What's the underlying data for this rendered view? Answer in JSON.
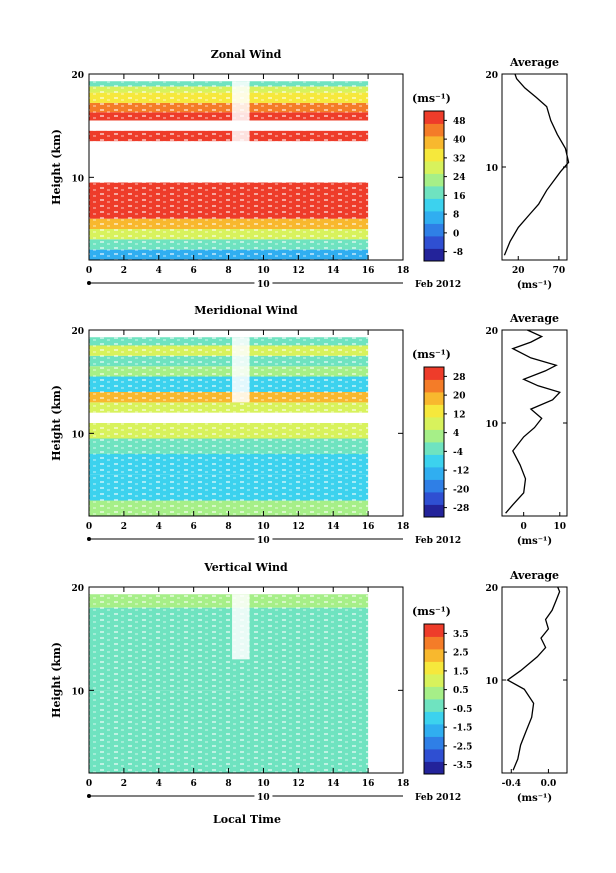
{
  "figure": {
    "x_ticks": [
      "0",
      "2",
      "4",
      "6",
      "8",
      "10",
      "12",
      "14",
      "16",
      "18"
    ],
    "y_ticks": [
      "20",
      "10"
    ],
    "ylabel": "Height (km)",
    "xlabel": "Local Time",
    "date_day": "10",
    "date_label": "Feb 2012",
    "avg_title": "Average",
    "unit_label": "(ms⁻¹)"
  },
  "chart_data": [
    {
      "type": "heatmap",
      "title": "Zonal Wind",
      "xlabel": "",
      "ylabel": "Height (km)",
      "xlim": [
        0,
        18
      ],
      "ylim": [
        2,
        20
      ],
      "colorbar_unit": "(ms⁻¹)",
      "colorbar_ticks": [
        "48",
        "40",
        "32",
        "24",
        "16",
        "8",
        "0",
        "-8"
      ],
      "colorbar_range": [
        -12,
        52
      ],
      "colors": [
        "#23239a",
        "#2f4fd2",
        "#2f7fe6",
        "#30aef0",
        "#3cd2ee",
        "#6fe3c0",
        "#a6ef88",
        "#d8f25c",
        "#f6e83c",
        "#f8b82e",
        "#f47c28",
        "#ee3c2a"
      ],
      "bands": [
        {
          "z0": 2,
          "z1": 3,
          "value": 8
        },
        {
          "z0": 3,
          "z1": 4,
          "value": 16
        },
        {
          "z0": 4,
          "z1": 5,
          "value": 28
        },
        {
          "z0": 5,
          "z1": 6,
          "value": 40
        },
        {
          "z0": 6,
          "z1": 9.5,
          "value": 55
        },
        {
          "z0": 9.5,
          "z1": 13.5,
          "value": null
        },
        {
          "z0": 13.5,
          "z1": 14.5,
          "value": 55
        },
        {
          "z0": 14.5,
          "z1": 15.5,
          "value": null
        },
        {
          "z0": 15.5,
          "z1": 16.3,
          "value": 55
        },
        {
          "z0": 16.3,
          "z1": 17.2,
          "value": 45
        },
        {
          "z0": 17.2,
          "z1": 18.2,
          "value": 34
        },
        {
          "z0": 18.2,
          "z1": 18.8,
          "value": 26
        },
        {
          "z0": 18.8,
          "z1": 19.3,
          "value": 18
        }
      ],
      "avg_profile": {
        "xlim": [
          0,
          80
        ],
        "x_ticks": [
          "20",
          "70"
        ],
        "xlabel": "(ms⁻¹)",
        "ylim": [
          0,
          20
        ],
        "points": [
          [
            3,
            0.5
          ],
          [
            10,
            2
          ],
          [
            20,
            3.5
          ],
          [
            35,
            5
          ],
          [
            45,
            6
          ],
          [
            55,
            7.5
          ],
          [
            72,
            9.5
          ],
          [
            82,
            10.5
          ],
          [
            78,
            12
          ],
          [
            68,
            13.5
          ],
          [
            60,
            15
          ],
          [
            55,
            16.5
          ],
          [
            42,
            17.5
          ],
          [
            28,
            18.5
          ],
          [
            18,
            19.5
          ],
          [
            16,
            20
          ]
        ]
      }
    },
    {
      "type": "heatmap",
      "title": "Meridional Wind",
      "xlabel": "",
      "ylabel": "Height (km)",
      "xlim": [
        0,
        18
      ],
      "ylim": [
        2,
        20
      ],
      "colorbar_unit": "(ms⁻¹)",
      "colorbar_ticks": [
        "28",
        "20",
        "12",
        "4",
        "-4",
        "-12",
        "-20",
        "-28"
      ],
      "colorbar_range": [
        -32,
        32
      ],
      "colors": [
        "#23239a",
        "#2f4fd2",
        "#2f7fe6",
        "#30aef0",
        "#3cd2ee",
        "#6fe3c0",
        "#a6ef88",
        "#d8f25c",
        "#f6e83c",
        "#f8b82e",
        "#f47c28",
        "#ee3c2a"
      ],
      "bands": [
        {
          "z0": 2,
          "z1": 3.5,
          "value": 2
        },
        {
          "z0": 3.5,
          "z1": 6,
          "value": -6
        },
        {
          "z0": 6,
          "z1": 8,
          "value": -10
        },
        {
          "z0": 8,
          "z1": 9.5,
          "value": -4
        },
        {
          "z0": 9.5,
          "z1": 11,
          "value": 8
        },
        {
          "z0": 11,
          "z1": 12,
          "value": null
        },
        {
          "z0": 12,
          "z1": 13,
          "value": 10
        },
        {
          "z0": 13,
          "z1": 14,
          "value": 16
        },
        {
          "z0": 14,
          "z1": 15.5,
          "value": -6
        },
        {
          "z0": 15.5,
          "z1": 16.5,
          "value": 4
        },
        {
          "z0": 16.5,
          "z1": 17.5,
          "value": -4
        },
        {
          "z0": 17.5,
          "z1": 18.5,
          "value": 6
        },
        {
          "z0": 18.5,
          "z1": 19.3,
          "value": -2
        }
      ],
      "avg_profile": {
        "xlim": [
          -6,
          12
        ],
        "x_ticks": [
          "0",
          "10"
        ],
        "xlabel": "(ms⁻¹)",
        "ylim": [
          0,
          20
        ],
        "points": [
          [
            -5,
            0.3
          ],
          [
            -3,
            1.2
          ],
          [
            0,
            2.5
          ],
          [
            0.5,
            4
          ],
          [
            -1,
            5.5
          ],
          [
            -3,
            7
          ],
          [
            0,
            8.5
          ],
          [
            3,
            9.5
          ],
          [
            5,
            10.5
          ],
          [
            2,
            11.5
          ],
          [
            8,
            12.5
          ],
          [
            10,
            13.3
          ],
          [
            4,
            14
          ],
          [
            0,
            14.7
          ],
          [
            6,
            15.6
          ],
          [
            9,
            16.2
          ],
          [
            2,
            17
          ],
          [
            -3,
            18
          ],
          [
            2,
            18.7
          ],
          [
            5,
            19.3
          ],
          [
            1,
            20
          ]
        ]
      }
    },
    {
      "type": "heatmap",
      "title": "Vertical Wind",
      "xlabel": "Local Time",
      "ylabel": "Height (km)",
      "xlim": [
        0,
        18
      ],
      "ylim": [
        2,
        20
      ],
      "colorbar_unit": "(ms⁻¹)",
      "colorbar_ticks": [
        "3.5",
        "2.5",
        "1.5",
        "0.5",
        "-0.5",
        "-1.5",
        "-2.5",
        "-3.5"
      ],
      "colorbar_range": [
        -4,
        4
      ],
      "colors": [
        "#23239a",
        "#2f4fd2",
        "#2f7fe6",
        "#30aef0",
        "#3cd2ee",
        "#6fe3c0",
        "#a6ef88",
        "#d8f25c",
        "#f6e83c",
        "#f8b82e",
        "#f47c28",
        "#ee3c2a"
      ],
      "bands": [
        {
          "z0": 2,
          "z1": 10,
          "value": -0.45
        },
        {
          "z0": 10,
          "z1": 18,
          "value": -0.15
        },
        {
          "z0": 18,
          "z1": 19.3,
          "value": 0.1
        }
      ],
      "avg_profile": {
        "xlim": [
          -0.5,
          0.2
        ],
        "x_ticks": [
          "-0.4",
          "0.0"
        ],
        "xlabel": "(ms⁻¹)",
        "ylim": [
          0,
          20
        ],
        "points": [
          [
            -0.38,
            0.3
          ],
          [
            -0.33,
            1.5
          ],
          [
            -0.3,
            3
          ],
          [
            -0.24,
            4.5
          ],
          [
            -0.18,
            6
          ],
          [
            -0.16,
            7.5
          ],
          [
            -0.26,
            9
          ],
          [
            -0.44,
            10
          ],
          [
            -0.3,
            11
          ],
          [
            -0.12,
            12.5
          ],
          [
            -0.03,
            13.5
          ],
          [
            -0.08,
            14.5
          ],
          [
            0.0,
            15.5
          ],
          [
            -0.03,
            16.5
          ],
          [
            0.04,
            17.5
          ],
          [
            0.08,
            18.5
          ],
          [
            0.12,
            19.5
          ],
          [
            0.1,
            20
          ]
        ]
      }
    }
  ]
}
